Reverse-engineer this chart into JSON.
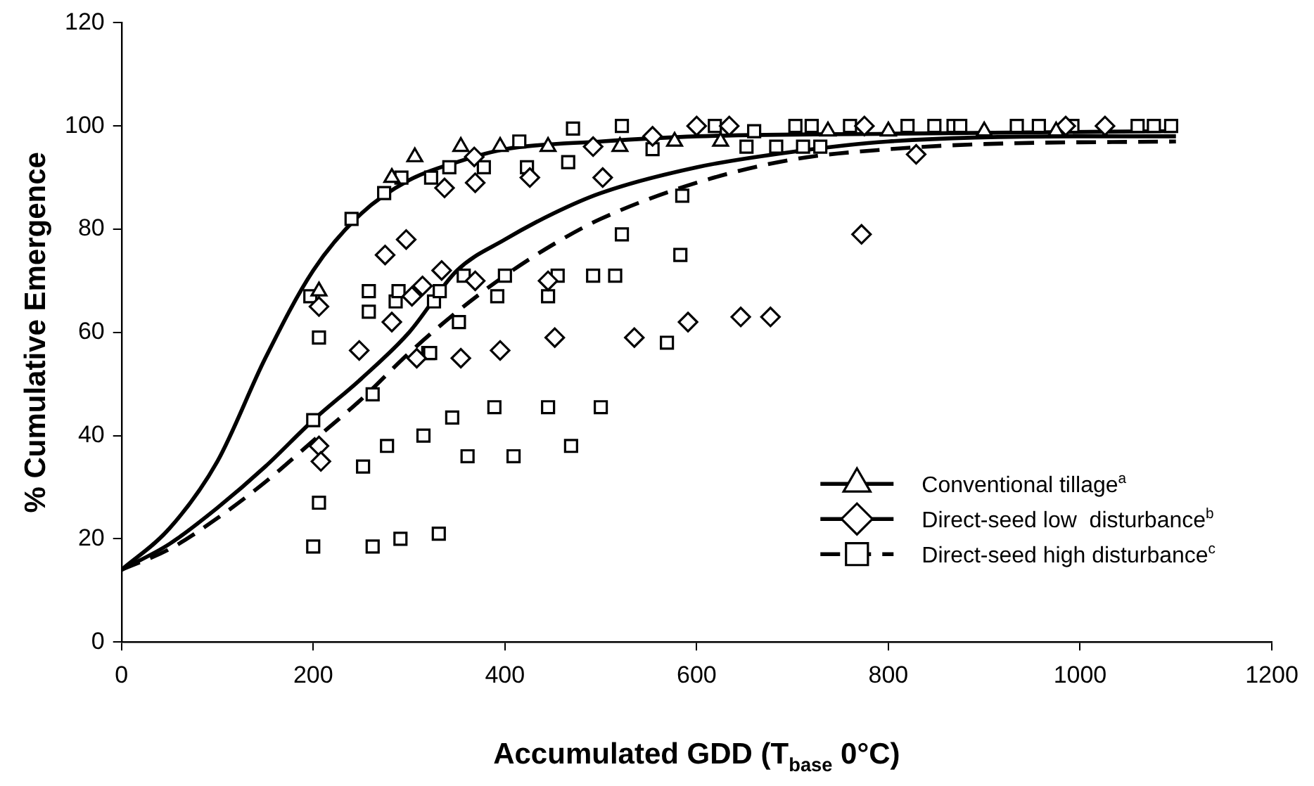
{
  "chart_data": {
    "type": "scatter",
    "xlabel": "Accumulated GDD (T$_{base}$ 0°C)",
    "ylabel": "% Cumulative Emergence",
    "xlim": [
      0,
      1200
    ],
    "xticks": [
      0,
      200,
      400,
      600,
      800,
      1000,
      1200
    ],
    "ylim": [
      0,
      120
    ],
    "yticks": [
      0,
      20,
      40,
      60,
      80,
      100,
      120
    ],
    "grid": false,
    "legend": "bottom right",
    "series": [
      {
        "type": "scatter",
        "name": "Conventional tillage$^{a}$",
        "color": "#000000",
        "marker": "triangle",
        "x": [
          206,
          282,
          306,
          354,
          395,
          445,
          520,
          577,
          625,
          737,
          800,
          900,
          975
        ],
        "values": [
          68,
          90,
          94,
          96,
          96,
          96,
          96,
          97,
          97,
          99,
          99,
          99,
          99
        ]
      },
      {
        "type": "line",
        "color": "#000000",
        "marker": "none",
        "line_style": "solid",
        "x": [
          0,
          50,
          100,
          150,
          200,
          250,
          300,
          350,
          400,
          500,
          600,
          800,
          1100
        ],
        "values": [
          14,
          22,
          35,
          55,
          72,
          83,
          89.5,
          93,
          95.5,
          97,
          98,
          98.5,
          99
        ]
      },
      {
        "type": "scatter",
        "name": "Direct-seed low  disturbance$^{b}$",
        "color": "#000000",
        "marker": "diamond",
        "x": [
          206,
          208,
          206,
          248,
          275,
          282,
          297,
          303,
          308,
          314,
          334,
          337,
          354,
          368,
          369,
          369,
          395,
          426,
          445,
          452,
          492,
          502,
          535,
          554,
          591,
          600,
          634,
          646,
          677,
          772,
          775,
          829,
          985,
          1026
        ],
        "values": [
          38,
          35,
          65,
          56.5,
          75,
          62,
          78,
          67,
          55,
          69,
          72,
          88,
          55,
          94,
          89,
          70,
          56.5,
          90,
          70,
          59,
          96,
          90,
          59,
          98,
          62,
          100,
          100,
          63,
          63,
          79,
          100,
          94.5,
          100,
          100
        ]
      },
      {
        "type": "line",
        "color": "#000000",
        "marker": "none",
        "line_style": "solid",
        "x": [
          0,
          50,
          100,
          150,
          200,
          250,
          300,
          350,
          400,
          450,
          500,
          600,
          700,
          800,
          1000,
          1100
        ],
        "values": [
          14,
          19,
          26,
          34,
          43,
          51,
          60,
          72,
          78,
          83,
          87,
          92,
          95,
          97,
          98,
          98
        ]
      },
      {
        "type": "scatter",
        "name": "Direct-seed high disturbance$^{c}$",
        "color": "#000000",
        "marker": "square",
        "x": [
          197,
          200,
          200,
          206,
          206,
          240,
          252,
          258,
          258,
          262,
          262,
          274,
          277,
          286,
          289,
          291,
          292,
          315,
          320,
          322,
          323,
          326,
          331,
          332,
          342,
          345,
          352,
          357,
          361,
          378,
          389,
          392,
          400,
          409,
          415,
          423,
          445,
          445,
          455,
          466,
          469,
          471,
          492,
          500,
          515,
          522,
          522,
          554,
          569,
          583,
          585,
          619,
          652,
          660,
          683,
          703,
          711,
          720,
          729,
          760,
          820,
          848,
          868,
          875,
          934,
          957,
          992,
          1060,
          1077,
          1095
        ],
        "values": [
          67,
          43,
          18.5,
          59,
          27,
          82,
          34,
          68,
          64,
          48,
          18.5,
          87,
          38,
          66,
          68,
          20,
          90,
          40,
          56,
          56,
          90,
          66,
          21,
          68,
          92,
          43.5,
          62,
          71,
          36,
          92,
          45.5,
          67,
          71,
          36,
          97,
          92,
          67,
          45.5,
          71,
          93,
          38,
          99.5,
          71,
          45.5,
          71,
          79,
          100,
          95.5,
          58,
          75,
          86.5,
          100,
          96,
          99,
          96,
          100,
          96,
          100,
          96,
          100,
          100,
          100,
          100,
          100,
          100,
          100,
          100,
          100,
          100,
          100
        ]
      },
      {
        "type": "line",
        "color": "#000000",
        "marker": "none",
        "line_style": "dashed",
        "x": [
          0,
          50,
          100,
          150,
          200,
          250,
          300,
          350,
          400,
          450,
          500,
          600,
          700,
          800,
          900,
          1100
        ],
        "values": [
          14,
          18,
          24,
          31,
          39,
          47,
          56,
          64,
          71,
          77,
          82,
          89,
          93.5,
          95.5,
          96.5,
          97
        ]
      }
    ]
  }
}
